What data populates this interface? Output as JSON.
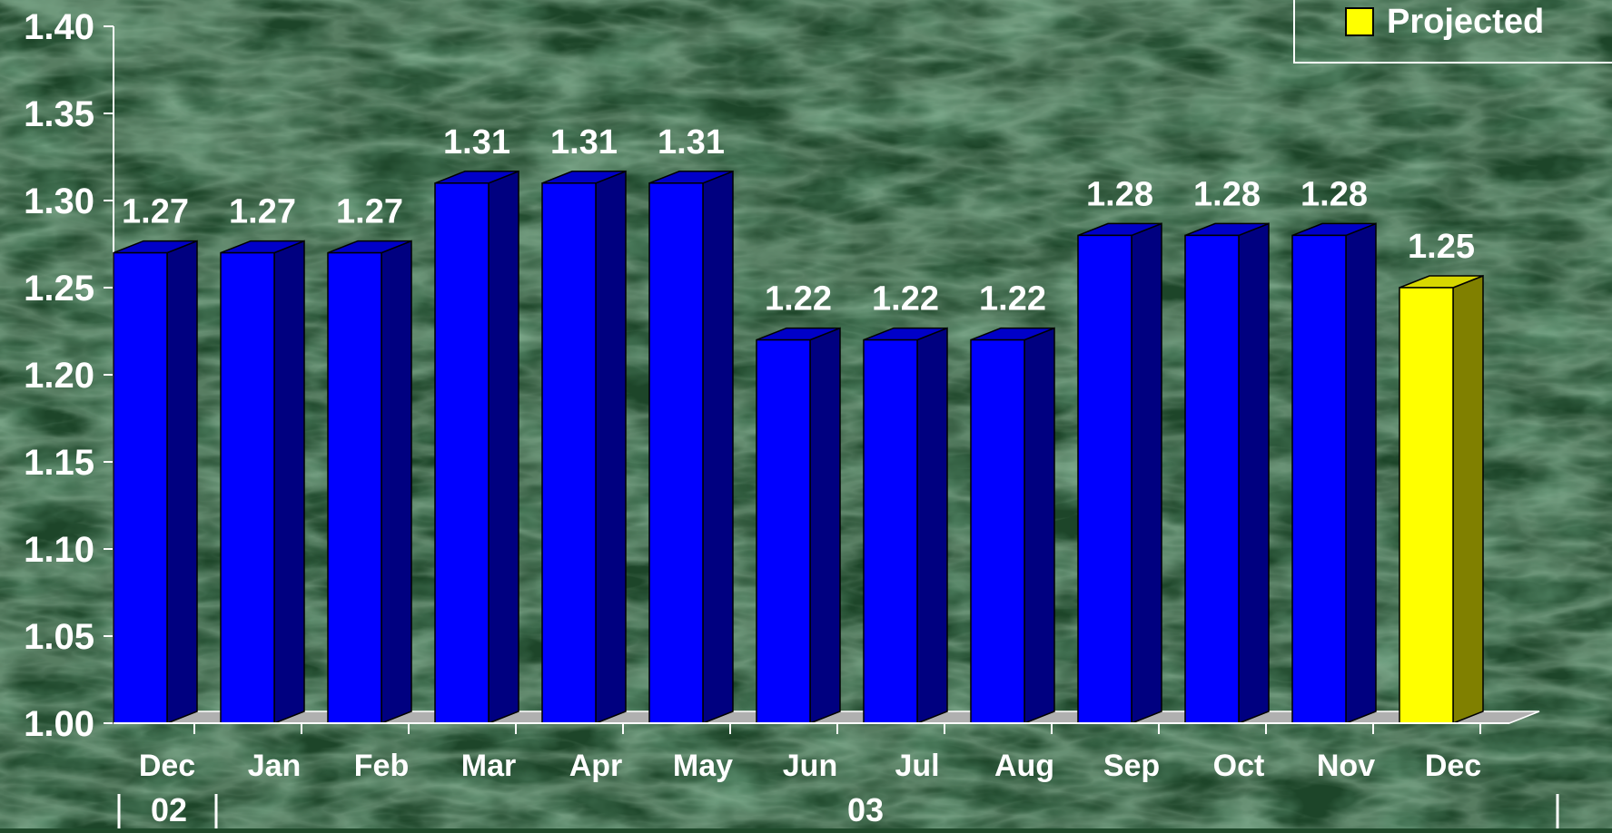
{
  "colors": {
    "background": "#1f4a2c",
    "bar_front": "#0000ff",
    "bar_side": "#000080",
    "bar_top": "#0000c8",
    "projected_front": "#ffff00",
    "projected_side": "#808000",
    "projected_top": "#d8d800",
    "floor": "#b0b0b0",
    "text": "#ffffff"
  },
  "legend": {
    "label": "Projected",
    "swatch_color": "#ffff00"
  },
  "chart_data": {
    "type": "bar",
    "title": "",
    "xlabel": "",
    "ylabel": "",
    "ylim": [
      1.0,
      1.4
    ],
    "yticks": [
      "1.00",
      "1.05",
      "1.10",
      "1.15",
      "1.20",
      "1.25",
      "1.30",
      "1.35",
      "1.40"
    ],
    "categories": [
      "Dec",
      "Jan",
      "Feb",
      "Mar",
      "Apr",
      "May",
      "Jun",
      "Jul",
      "Aug",
      "Sep",
      "Oct",
      "Nov",
      "Dec"
    ],
    "values": [
      1.27,
      1.27,
      1.27,
      1.31,
      1.31,
      1.31,
      1.22,
      1.22,
      1.22,
      1.28,
      1.28,
      1.28,
      1.25
    ],
    "value_labels": [
      "1.27",
      "1.27",
      "1.27",
      "1.31",
      "1.31",
      "1.31",
      "1.22",
      "1.22",
      "1.22",
      "1.28",
      "1.28",
      "1.28",
      "1.25"
    ],
    "projected": [
      false,
      false,
      false,
      false,
      false,
      false,
      false,
      false,
      false,
      false,
      false,
      false,
      true
    ],
    "year_groups": [
      {
        "label": "02",
        "start": 0,
        "end": 0
      },
      {
        "label": "03",
        "start": 1,
        "end": 12
      }
    ],
    "grid": false,
    "legend_position": "top-right"
  }
}
